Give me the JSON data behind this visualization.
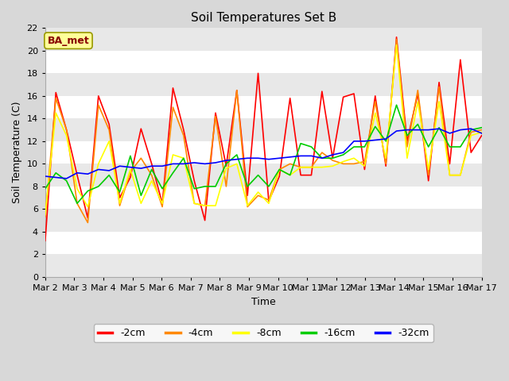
{
  "title": "Soil Temperatures Set B",
  "xlabel": "Time",
  "ylabel": "Soil Temperature (C)",
  "ylim": [
    0,
    22
  ],
  "yticks": [
    0,
    2,
    4,
    6,
    8,
    10,
    12,
    14,
    16,
    18,
    20,
    22
  ],
  "xtick_labels": [
    "Mar 2",
    "Mar 3",
    "Mar 4",
    "Mar 5",
    "Mar 6",
    "Mar 7",
    "Mar 8",
    "Mar 9",
    "Mar 10",
    "Mar 11",
    "Mar 12",
    "Mar 13",
    "Mar 14",
    "Mar 15",
    "Mar 16",
    "Mar 17"
  ],
  "outer_bg": "#d8d8d8",
  "plot_bg": "#ffffff",
  "band_color": "#e8e8e8",
  "grid_color": "#ffffff",
  "colors": {
    "-2cm": "#ff0000",
    "-4cm": "#ff8800",
    "-8cm": "#ffff00",
    "-16cm": "#00cc00",
    "-32cm": "#0000ff"
  },
  "annotation_text": "BA_met",
  "annotation_bg": "#ffff99",
  "annotation_edge": "#999900",
  "annotation_text_color": "#880000",
  "series": {
    "-2cm": [
      3.2,
      16.3,
      13.0,
      9.0,
      5.2,
      16.0,
      13.5,
      7.0,
      8.8,
      13.1,
      10.0,
      6.5,
      16.7,
      13.0,
      8.5,
      5.0,
      14.5,
      9.8,
      16.5,
      7.2,
      18.0,
      6.7,
      8.9,
      15.8,
      9.0,
      9.0,
      16.4,
      10.5,
      15.9,
      16.2,
      9.5,
      16.0,
      9.8,
      21.2,
      12.0,
      16.2,
      8.5,
      17.2,
      10.0,
      19.2,
      11.0,
      12.5
    ],
    "-4cm": [
      5.3,
      15.8,
      13.0,
      6.5,
      4.8,
      15.2,
      13.0,
      6.3,
      9.3,
      10.5,
      9.0,
      6.2,
      15.0,
      12.5,
      6.5,
      6.3,
      14.2,
      8.0,
      16.5,
      6.2,
      7.2,
      6.8,
      9.5,
      10.0,
      9.7,
      9.7,
      11.0,
      10.3,
      10.0,
      10.0,
      10.2,
      15.5,
      10.0,
      21.0,
      11.5,
      16.5,
      9.0,
      16.8,
      9.0,
      9.0,
      12.8,
      13.0
    ],
    "-8cm": [
      5.5,
      14.5,
      12.5,
      7.8,
      6.2,
      10.0,
      12.0,
      6.5,
      9.5,
      6.5,
      8.5,
      6.5,
      10.8,
      10.5,
      6.5,
      6.3,
      6.3,
      9.6,
      10.0,
      6.3,
      7.5,
      6.5,
      9.5,
      9.0,
      9.7,
      9.7,
      9.7,
      9.8,
      10.2,
      10.5,
      9.8,
      14.5,
      10.5,
      20.5,
      10.5,
      15.5,
      9.5,
      15.5,
      9.0,
      9.0,
      12.5,
      12.8
    ],
    "-16cm": [
      7.8,
      9.2,
      8.5,
      6.5,
      7.6,
      8.0,
      9.0,
      7.5,
      10.7,
      7.2,
      9.5,
      7.8,
      9.2,
      10.5,
      7.8,
      8.0,
      8.0,
      10.0,
      10.8,
      8.0,
      9.0,
      8.0,
      9.5,
      9.0,
      11.8,
      11.5,
      10.5,
      10.5,
      10.8,
      11.5,
      11.5,
      13.3,
      12.0,
      15.2,
      12.5,
      13.5,
      11.5,
      13.2,
      11.5,
      11.5,
      13.0,
      13.2
    ],
    "-32cm": [
      8.9,
      8.8,
      8.7,
      9.2,
      9.1,
      9.5,
      9.4,
      9.8,
      9.7,
      9.6,
      9.8,
      9.8,
      10.0,
      10.0,
      10.1,
      10.0,
      10.1,
      10.3,
      10.4,
      10.5,
      10.5,
      10.4,
      10.5,
      10.6,
      10.7,
      10.7,
      10.5,
      10.8,
      11.0,
      12.0,
      12.0,
      12.1,
      12.2,
      12.9,
      13.0,
      13.0,
      13.0,
      13.1,
      12.7,
      13.0,
      13.1,
      12.7
    ]
  }
}
